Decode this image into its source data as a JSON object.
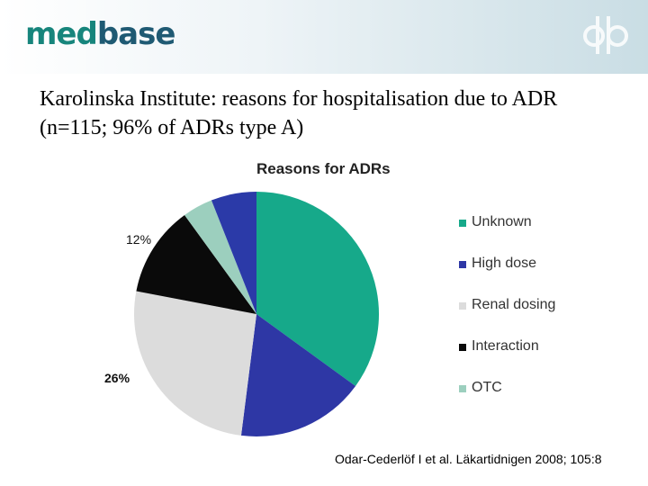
{
  "header": {
    "logo_part1": "med",
    "logo_part2": "base",
    "mark": "db"
  },
  "slide_title": "Karolinska Institute: reasons for hospitalisation due to ADR (n=115; 96% of ADRs type A)",
  "citation": "Odar-Cederlöf I et al. Läkartidnigen 2008; 105:8",
  "chart_data": {
    "type": "pie",
    "title": "Reasons for ADRs",
    "categories": [
      "Unknown",
      "High dose",
      "Renal dosing",
      "Interaction",
      "OTC",
      ""
    ],
    "values": [
      35,
      17,
      26,
      12,
      4,
      6
    ],
    "colors": [
      "#16a98a",
      "#2e37a5",
      "#dcdcdc",
      "#0a0a0a",
      "#9ccfbe",
      "#2b3aa8"
    ],
    "slice_labels": [
      "",
      "",
      "26%",
      "12%",
      "",
      ""
    ],
    "legend": [
      "Unknown",
      "High dose",
      "Renal dosing",
      "Interaction",
      "OTC"
    ],
    "legend_placement": "right"
  }
}
